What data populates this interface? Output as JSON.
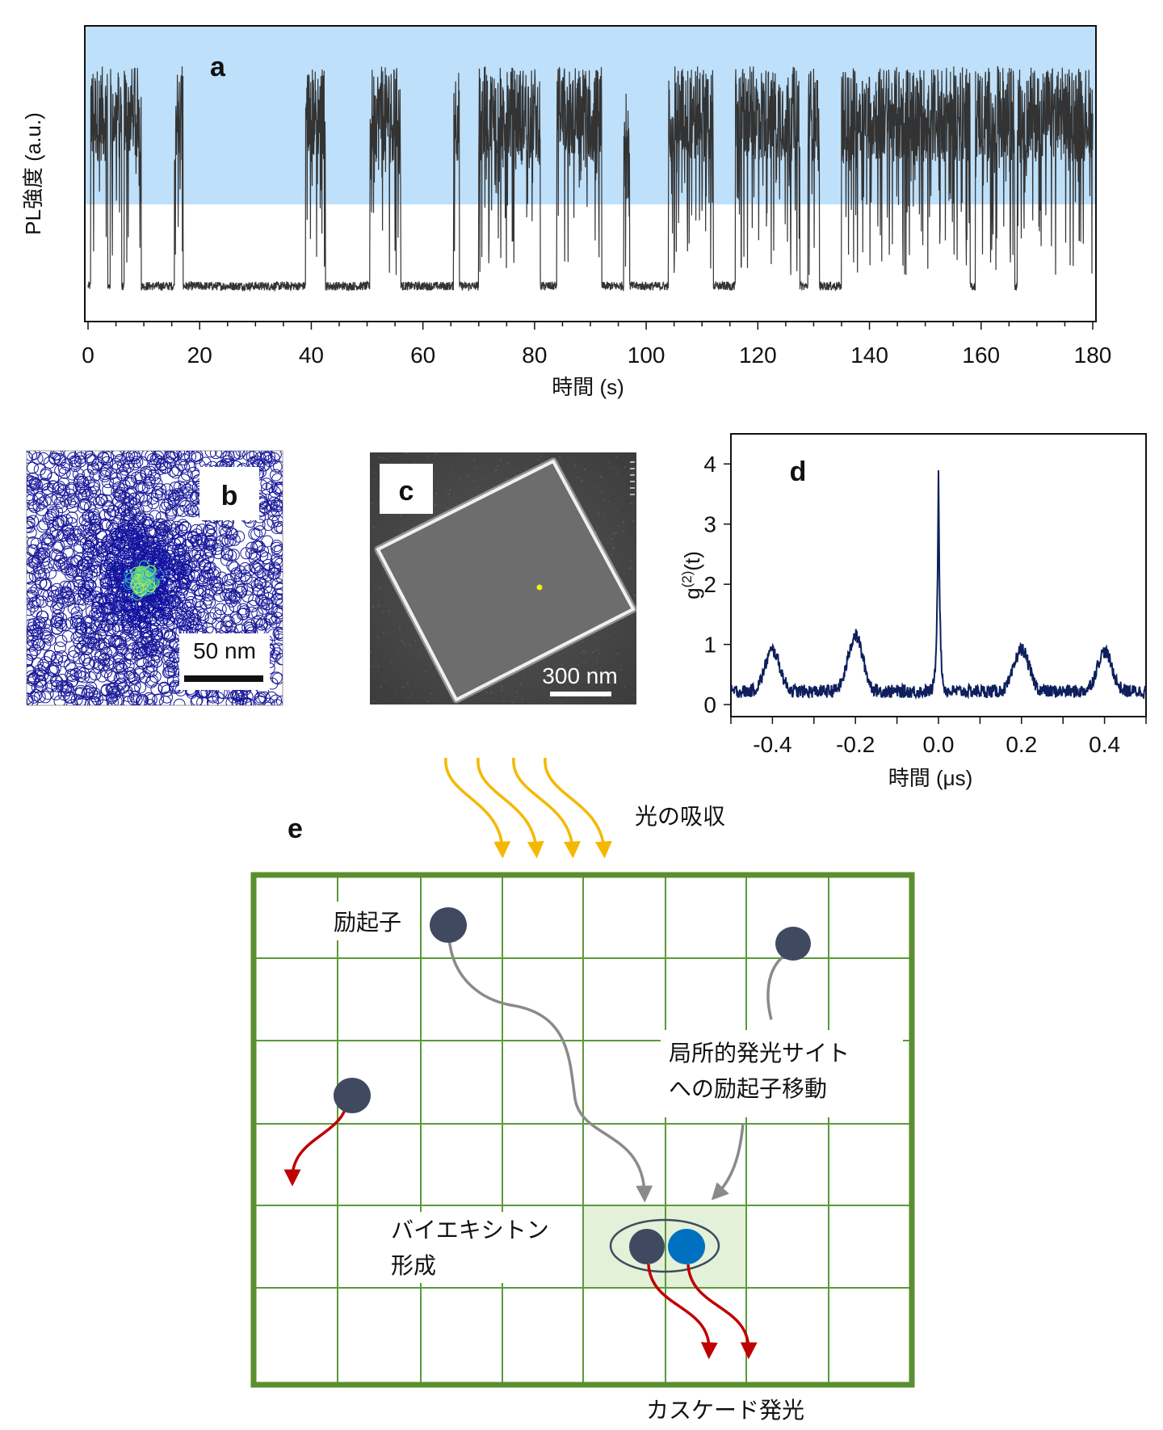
{
  "panel_labels": {
    "a": "a",
    "b": "b",
    "c": "c",
    "d": "d",
    "e": "e"
  },
  "colors": {
    "trace": "#333333",
    "highlight_band": "#bfe0fa",
    "g2_line": "#0d1f5c",
    "grid_green": "#5a9a3a",
    "grid_border": "#5a8f2e",
    "photon_orange": "#f5b800",
    "emission_red": "#c00000",
    "exciton_dark": "#3f4a60",
    "exciton_blue": "#0070c0",
    "transfer_grey": "#8a8a8a",
    "site_fill": "#e3f1d8",
    "spot_blue": "#1a1a9a",
    "spot_green": "#7fdc5a",
    "sem_bg": "#4a4a4a"
  },
  "chart_data": [
    {
      "id": "a",
      "type": "line",
      "title": "",
      "xlabel": "時間 (s)",
      "ylabel": "PL強度 (a.u.)",
      "xlim": [
        0,
        180
      ],
      "xticks": [
        0,
        20,
        40,
        60,
        80,
        100,
        120,
        140,
        160,
        180
      ],
      "ylim": [
        0,
        1
      ],
      "highlight_band": [
        0.5,
        1.0
      ],
      "bright_intervals": [
        [
          0.5,
          3.5
        ],
        [
          4.0,
          6.0
        ],
        [
          6.5,
          9.5
        ],
        [
          15.5,
          17.0
        ],
        [
          39.0,
          42.5
        ],
        [
          50.5,
          56.0
        ],
        [
          65.5,
          66.5
        ],
        [
          70.0,
          81.0
        ],
        [
          84.0,
          92.0
        ],
        [
          96.0,
          97.0
        ],
        [
          104.0,
          112.0
        ],
        [
          116.0,
          127.5
        ],
        [
          129.0,
          131.0
        ],
        [
          135.0,
          158.0
        ],
        [
          159.0,
          166.0
        ],
        [
          166.5,
          180.0
        ]
      ]
    },
    {
      "id": "b",
      "type": "scatter",
      "description_label": "50 nm",
      "scalebar_nm": 50,
      "center_nm": [
        0,
        0
      ],
      "spread_nm": {
        "localized_sigma": 3,
        "diffuse_range": 45
      }
    },
    {
      "id": "c",
      "type": "image",
      "scalebar_label": "300 nm",
      "scalebar_nm": 300
    },
    {
      "id": "d",
      "type": "line",
      "xlabel": "時間  (μs)",
      "ylabel": "g(2)(t)",
      "ylabel_base": "g",
      "ylabel_sup": "(2)",
      "ylabel_arg": "(t)",
      "xlim": [
        -0.5,
        0.5
      ],
      "ylim": [
        -0.2,
        4.5
      ],
      "xticks": [
        -0.4,
        -0.2,
        0.0,
        0.2,
        0.4
      ],
      "xtick_labels": [
        "-0.4",
        "-0.2",
        "0.0",
        "0.2",
        "0.4"
      ],
      "yticks": [
        0,
        1,
        2,
        3,
        4
      ],
      "ytick_labels": [
        "0",
        "1",
        "2",
        "3",
        "4"
      ],
      "baseline": 0.22,
      "peaks": [
        {
          "t": -0.4,
          "height": 0.9
        },
        {
          "t": -0.2,
          "height": 1.15
        },
        {
          "t": 0.0,
          "height": 4.0
        },
        {
          "t": 0.2,
          "height": 0.92
        },
        {
          "t": 0.4,
          "height": 0.88
        }
      ]
    }
  ],
  "diagram_e": {
    "light_absorption": "光の吸収",
    "exciton": "励起子",
    "transfer_line1": "局所的発光サイト",
    "transfer_line2": "への励起子移動",
    "biexciton_line1": "バイエキシトン",
    "biexciton_line2": "形成",
    "cascade_emission": "カスケード発光"
  }
}
